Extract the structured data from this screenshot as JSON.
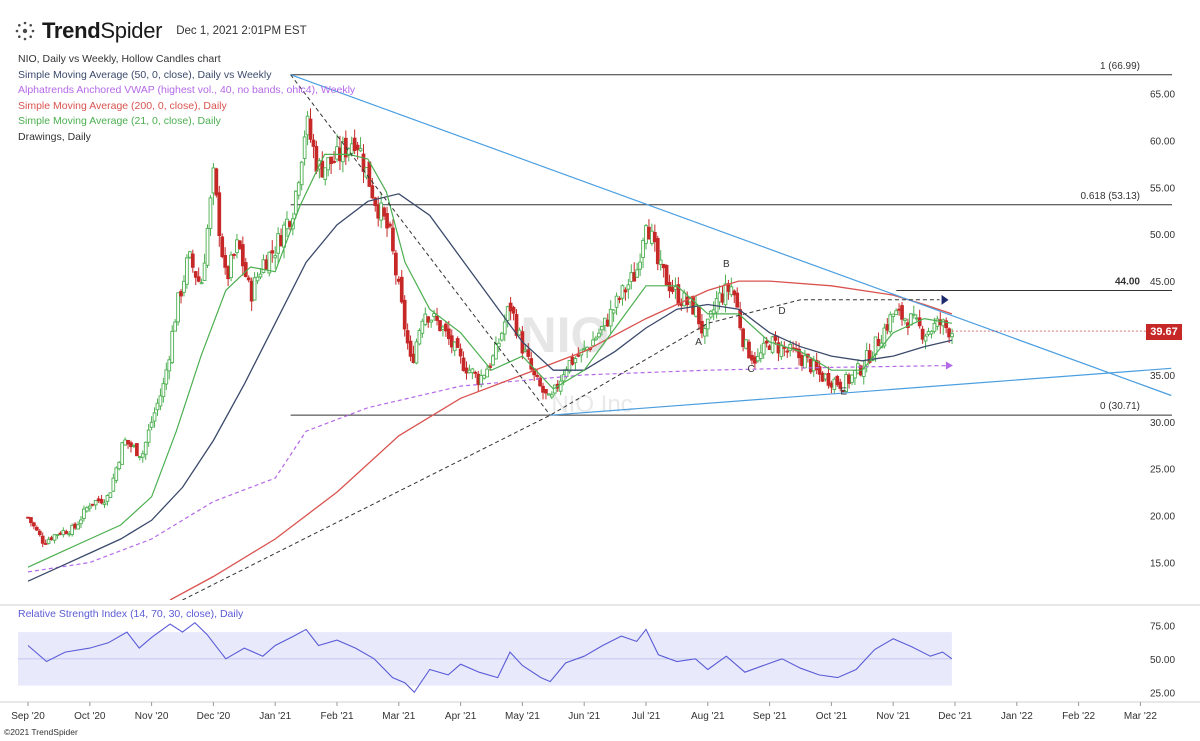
{
  "header": {
    "brand_bold": "Trend",
    "brand_thin": "Spider",
    "timestamp": "Dec 1, 2021 2:01PM EST",
    "logo_icon": "trendspider-logo-icon"
  },
  "legend": [
    {
      "text": "NIO, Daily vs Weekly, Hollow Candles chart",
      "color": "#333333"
    },
    {
      "text": "Simple Moving Average (50, 0, close), Daily vs Weekly",
      "color": "#3b4a6b"
    },
    {
      "text": "Alphatrends Anchored VWAP (highest vol., 40, no bands, ohlc4), Weekly",
      "color": "#b469e8"
    },
    {
      "text": "Simple Moving Average (200, 0, close), Daily",
      "color": "#d9534f"
    },
    {
      "text": "Simple Moving Average (21, 0, close), Daily",
      "color": "#4caf50"
    },
    {
      "text": "Drawings, Daily",
      "color": "#333333"
    }
  ],
  "watermark": {
    "ticker": "NIO",
    "name": "NIO Inc"
  },
  "price_tag": "39.67",
  "copyright": "©2021 TrendSpider",
  "colors": {
    "up": "#4caf50",
    "down": "#c62828",
    "trend": "#4a9ee0",
    "sma50": "#3b4a6b",
    "sma200": "#d9534f",
    "sma21": "#4caf50",
    "vwap": "#b469e8",
    "rsi": "#5b5bd6",
    "rsi_band": "#e8eafc"
  },
  "chart_data": {
    "type": "candlestick",
    "x_ticks": [
      "Sep '20",
      "Oct '20",
      "Nov '20",
      "Dec '20",
      "Jan '21",
      "Feb '21",
      "Mar '21",
      "Apr '21",
      "May '21",
      "Jun '21",
      "Jul '21",
      "Aug '21",
      "Sep '21",
      "Oct '21",
      "Nov '21",
      "Dec '21",
      "Jan '22",
      "Feb '22",
      "Mar '22"
    ],
    "y_ticks": [
      "65.00",
      "60.00",
      "55.00",
      "50.00",
      "45.00",
      "40.00",
      "35.00",
      "30.00",
      "25.00",
      "20.00",
      "15.00"
    ],
    "ylim": [
      11,
      67.5
    ],
    "fib_levels": [
      {
        "label": "1 (66.99)",
        "value": 66.99
      },
      {
        "label": "0.618 (53.13)",
        "value": 53.13
      },
      {
        "label": "44.00",
        "value": 44.0
      },
      {
        "label": "0 (30.71)",
        "value": 30.71
      }
    ],
    "pattern_labels": [
      {
        "label": "A",
        "month": 10.85,
        "price": 38.2
      },
      {
        "label": "B",
        "month": 11.3,
        "price": 46.5
      },
      {
        "label": "C",
        "month": 11.7,
        "price": 35.3
      },
      {
        "label": "D",
        "month": 12.2,
        "price": 41.5
      },
      {
        "label": "E",
        "month": 13.2,
        "price": 32.9
      }
    ],
    "close_path": [
      {
        "month": 0.0,
        "price": 19.8
      },
      {
        "month": 0.25,
        "price": 17.2
      },
      {
        "month": 0.5,
        "price": 18.2
      },
      {
        "month": 0.75,
        "price": 18.6
      },
      {
        "month": 1.0,
        "price": 21.3
      },
      {
        "month": 1.3,
        "price": 22.0
      },
      {
        "month": 1.55,
        "price": 28.0
      },
      {
        "month": 1.85,
        "price": 26.5
      },
      {
        "month": 2.0,
        "price": 30.0
      },
      {
        "month": 2.2,
        "price": 34.0
      },
      {
        "month": 2.4,
        "price": 42.0
      },
      {
        "month": 2.6,
        "price": 47.5
      },
      {
        "month": 2.8,
        "price": 44.5
      },
      {
        "month": 3.0,
        "price": 56.0
      },
      {
        "month": 3.2,
        "price": 45.0
      },
      {
        "month": 3.4,
        "price": 49.0
      },
      {
        "month": 3.6,
        "price": 43.5
      },
      {
        "month": 3.8,
        "price": 47.0
      },
      {
        "month": 4.0,
        "price": 48.5
      },
      {
        "month": 4.3,
        "price": 53.0
      },
      {
        "month": 4.5,
        "price": 62.0
      },
      {
        "month": 4.7,
        "price": 57.0
      },
      {
        "month": 5.0,
        "price": 58.0
      },
      {
        "month": 5.3,
        "price": 60.5
      },
      {
        "month": 5.6,
        "price": 54.0
      },
      {
        "month": 5.85,
        "price": 50.0
      },
      {
        "month": 6.0,
        "price": 44.0
      },
      {
        "month": 6.2,
        "price": 36.0
      },
      {
        "month": 6.4,
        "price": 42.0
      },
      {
        "month": 6.7,
        "price": 40.0
      },
      {
        "month": 7.0,
        "price": 36.5
      },
      {
        "month": 7.3,
        "price": 34.5
      },
      {
        "month": 7.55,
        "price": 37.0
      },
      {
        "month": 7.8,
        "price": 42.5
      },
      {
        "month": 8.0,
        "price": 38.0
      },
      {
        "month": 8.2,
        "price": 34.5
      },
      {
        "month": 8.45,
        "price": 32.0
      },
      {
        "month": 8.7,
        "price": 36.0
      },
      {
        "month": 9.0,
        "price": 37.5
      },
      {
        "month": 9.3,
        "price": 40.0
      },
      {
        "month": 9.6,
        "price": 43.5
      },
      {
        "month": 9.85,
        "price": 46.0
      },
      {
        "month": 10.0,
        "price": 52.0
      },
      {
        "month": 10.2,
        "price": 46.5
      },
      {
        "month": 10.5,
        "price": 43.5
      },
      {
        "month": 10.8,
        "price": 42.0
      },
      {
        "month": 10.95,
        "price": 39.0
      },
      {
        "month": 11.15,
        "price": 43.0
      },
      {
        "month": 11.4,
        "price": 44.5
      },
      {
        "month": 11.6,
        "price": 38.0
      },
      {
        "month": 11.8,
        "price": 36.5
      },
      {
        "month": 12.0,
        "price": 38.5
      },
      {
        "month": 12.3,
        "price": 37.5
      },
      {
        "month": 12.6,
        "price": 36.5
      },
      {
        "month": 12.8,
        "price": 35.0
      },
      {
        "month": 13.0,
        "price": 34.5
      },
      {
        "month": 13.2,
        "price": 34.0
      },
      {
        "month": 13.45,
        "price": 35.5
      },
      {
        "month": 13.7,
        "price": 38.0
      },
      {
        "month": 14.0,
        "price": 41.5
      },
      {
        "month": 14.25,
        "price": 41.0
      },
      {
        "month": 14.5,
        "price": 39.5
      },
      {
        "month": 14.75,
        "price": 40.5
      },
      {
        "month": 14.95,
        "price": 39.67
      }
    ],
    "sma21": [
      {
        "month": 0.0,
        "price": 14.5
      },
      {
        "month": 0.5,
        "price": 16.0
      },
      {
        "month": 1.0,
        "price": 17.5
      },
      {
        "month": 1.5,
        "price": 19.0
      },
      {
        "month": 2.0,
        "price": 22.0
      },
      {
        "month": 2.4,
        "price": 29.0
      },
      {
        "month": 2.8,
        "price": 37.0
      },
      {
        "month": 3.2,
        "price": 44.0
      },
      {
        "month": 3.6,
        "price": 46.5
      },
      {
        "month": 4.0,
        "price": 46.0
      },
      {
        "month": 4.4,
        "price": 53.0
      },
      {
        "month": 4.8,
        "price": 58.5
      },
      {
        "month": 5.2,
        "price": 58.5
      },
      {
        "month": 5.5,
        "price": 58.0
      },
      {
        "month": 5.8,
        "price": 54.5
      },
      {
        "month": 6.1,
        "price": 47.0
      },
      {
        "month": 6.5,
        "price": 42.0
      },
      {
        "month": 7.0,
        "price": 39.5
      },
      {
        "month": 7.5,
        "price": 35.5
      },
      {
        "month": 8.0,
        "price": 37.0
      },
      {
        "month": 8.5,
        "price": 33.5
      },
      {
        "month": 9.0,
        "price": 35.5
      },
      {
        "month": 9.5,
        "price": 40.0
      },
      {
        "month": 10.0,
        "price": 44.5
      },
      {
        "month": 10.5,
        "price": 44.5
      },
      {
        "month": 11.0,
        "price": 41.5
      },
      {
        "month": 11.5,
        "price": 41.5
      },
      {
        "month": 12.0,
        "price": 38.5
      },
      {
        "month": 12.5,
        "price": 37.5
      },
      {
        "month": 13.0,
        "price": 35.5
      },
      {
        "month": 13.5,
        "price": 35.5
      },
      {
        "month": 14.0,
        "price": 39.5
      },
      {
        "month": 14.5,
        "price": 41.0
      },
      {
        "month": 14.95,
        "price": 40.5
      }
    ],
    "sma50": [
      {
        "month": 0.0,
        "price": 13.0
      },
      {
        "month": 0.5,
        "price": 14.5
      },
      {
        "month": 1.0,
        "price": 16.0
      },
      {
        "month": 1.5,
        "price": 17.5
      },
      {
        "month": 2.0,
        "price": 19.5
      },
      {
        "month": 2.5,
        "price": 23.0
      },
      {
        "month": 3.0,
        "price": 28.0
      },
      {
        "month": 3.5,
        "price": 34.0
      },
      {
        "month": 4.0,
        "price": 40.5
      },
      {
        "month": 4.5,
        "price": 47.0
      },
      {
        "month": 5.0,
        "price": 51.0
      },
      {
        "month": 5.5,
        "price": 53.5
      },
      {
        "month": 6.0,
        "price": 54.3
      },
      {
        "month": 6.5,
        "price": 52.0
      },
      {
        "month": 7.0,
        "price": 47.5
      },
      {
        "month": 7.5,
        "price": 43.0
      },
      {
        "month": 8.0,
        "price": 38.5
      },
      {
        "month": 8.5,
        "price": 35.5
      },
      {
        "month": 9.0,
        "price": 35.5
      },
      {
        "month": 9.5,
        "price": 37.5
      },
      {
        "month": 10.0,
        "price": 40.0
      },
      {
        "month": 10.5,
        "price": 42.0
      },
      {
        "month": 11.0,
        "price": 42.5
      },
      {
        "month": 11.5,
        "price": 42.0
      },
      {
        "month": 12.0,
        "price": 39.5
      },
      {
        "month": 12.5,
        "price": 38.0
      },
      {
        "month": 13.0,
        "price": 37.0
      },
      {
        "month": 13.5,
        "price": 36.5
      },
      {
        "month": 14.0,
        "price": 37.0
      },
      {
        "month": 14.5,
        "price": 38.0
      },
      {
        "month": 14.95,
        "price": 38.7
      }
    ],
    "sma200": [
      {
        "month": 2.3,
        "price": 11.0
      },
      {
        "month": 3.0,
        "price": 13.5
      },
      {
        "month": 4.0,
        "price": 17.5
      },
      {
        "month": 5.0,
        "price": 22.5
      },
      {
        "month": 6.0,
        "price": 28.5
      },
      {
        "month": 7.0,
        "price": 32.5
      },
      {
        "month": 8.0,
        "price": 35.0
      },
      {
        "month": 9.0,
        "price": 37.5
      },
      {
        "month": 10.0,
        "price": 41.0
      },
      {
        "month": 11.0,
        "price": 44.0
      },
      {
        "month": 11.5,
        "price": 45.0
      },
      {
        "month": 12.0,
        "price": 45.0
      },
      {
        "month": 13.0,
        "price": 44.5
      },
      {
        "month": 14.0,
        "price": 43.5
      },
      {
        "month": 14.5,
        "price": 42.5
      },
      {
        "month": 14.95,
        "price": 41.5
      }
    ],
    "vwap": [
      {
        "month": 0.0,
        "price": 14.0
      },
      {
        "month": 1.0,
        "price": 15.0
      },
      {
        "month": 2.0,
        "price": 17.5
      },
      {
        "month": 3.0,
        "price": 21.5
      },
      {
        "month": 4.0,
        "price": 24.0
      },
      {
        "month": 4.5,
        "price": 29.0
      },
      {
        "month": 5.5,
        "price": 31.5
      },
      {
        "month": 7.0,
        "price": 33.8
      },
      {
        "month": 9.0,
        "price": 35.0
      },
      {
        "month": 11.0,
        "price": 35.5
      },
      {
        "month": 13.0,
        "price": 35.8
      },
      {
        "month": 14.95,
        "price": 36.0
      }
    ],
    "drawings": {
      "upper_trendline": [
        {
          "month": 4.25,
          "price": 67.0
        },
        {
          "month": 18.5,
          "price": 32.8
        }
      ],
      "lower_trendline": [
        {
          "month": 8.45,
          "price": 30.7
        },
        {
          "month": 18.5,
          "price": 35.7
        }
      ],
      "dashed_decline": [
        {
          "month": 4.25,
          "price": 67.0
        },
        {
          "month": 8.45,
          "price": 30.7
        }
      ],
      "dashed_support": [
        {
          "month": 2.5,
          "price": 11.0
        },
        {
          "month": 8.45,
          "price": 30.7
        },
        {
          "month": 11.0,
          "price": 40.5
        },
        {
          "month": 12.5,
          "price": 43.0
        },
        {
          "month": 14.75,
          "price": 43.0
        }
      ]
    },
    "rsi": {
      "title": "Relative Strength Index (14, 70, 30, close), Daily",
      "y_ticks": [
        "75.00",
        "50.00",
        "25.00"
      ],
      "band": [
        30,
        70
      ],
      "ylim": [
        20,
        82
      ],
      "values": [
        {
          "month": 0.0,
          "price": 60
        },
        {
          "month": 0.3,
          "price": 48
        },
        {
          "month": 0.6,
          "price": 55
        },
        {
          "month": 1.0,
          "price": 58
        },
        {
          "month": 1.3,
          "price": 62
        },
        {
          "month": 1.6,
          "price": 70
        },
        {
          "month": 1.8,
          "price": 58
        },
        {
          "month": 2.0,
          "price": 66
        },
        {
          "month": 2.3,
          "price": 76
        },
        {
          "month": 2.5,
          "price": 70
        },
        {
          "month": 2.7,
          "price": 77
        },
        {
          "month": 2.9,
          "price": 68
        },
        {
          "month": 3.0,
          "price": 62
        },
        {
          "month": 3.2,
          "price": 50
        },
        {
          "month": 3.5,
          "price": 58
        },
        {
          "month": 3.8,
          "price": 52
        },
        {
          "month": 4.0,
          "price": 60
        },
        {
          "month": 4.3,
          "price": 67
        },
        {
          "month": 4.5,
          "price": 72
        },
        {
          "month": 4.7,
          "price": 60
        },
        {
          "month": 5.0,
          "price": 64
        },
        {
          "month": 5.3,
          "price": 58
        },
        {
          "month": 5.6,
          "price": 50
        },
        {
          "month": 5.9,
          "price": 36
        },
        {
          "month": 6.1,
          "price": 32
        },
        {
          "month": 6.25,
          "price": 25
        },
        {
          "month": 6.5,
          "price": 42
        },
        {
          "month": 6.8,
          "price": 38
        },
        {
          "month": 7.0,
          "price": 46
        },
        {
          "month": 7.3,
          "price": 40
        },
        {
          "month": 7.6,
          "price": 36
        },
        {
          "month": 7.8,
          "price": 55
        },
        {
          "month": 8.0,
          "price": 45
        },
        {
          "month": 8.3,
          "price": 36
        },
        {
          "month": 8.45,
          "price": 33
        },
        {
          "month": 8.7,
          "price": 47
        },
        {
          "month": 9.0,
          "price": 52
        },
        {
          "month": 9.3,
          "price": 60
        },
        {
          "month": 9.6,
          "price": 67
        },
        {
          "month": 9.85,
          "price": 63
        },
        {
          "month": 10.0,
          "price": 72
        },
        {
          "month": 10.2,
          "price": 53
        },
        {
          "month": 10.5,
          "price": 48
        },
        {
          "month": 10.8,
          "price": 50
        },
        {
          "month": 11.0,
          "price": 42
        },
        {
          "month": 11.3,
          "price": 52
        },
        {
          "month": 11.6,
          "price": 40
        },
        {
          "month": 11.9,
          "price": 45
        },
        {
          "month": 12.2,
          "price": 50
        },
        {
          "month": 12.5,
          "price": 43
        },
        {
          "month": 12.8,
          "price": 38
        },
        {
          "month": 13.1,
          "price": 36
        },
        {
          "month": 13.4,
          "price": 42
        },
        {
          "month": 13.7,
          "price": 57
        },
        {
          "month": 14.0,
          "price": 65
        },
        {
          "month": 14.3,
          "price": 59
        },
        {
          "month": 14.6,
          "price": 52
        },
        {
          "month": 14.8,
          "price": 55
        },
        {
          "month": 14.95,
          "price": 50
        }
      ]
    }
  }
}
